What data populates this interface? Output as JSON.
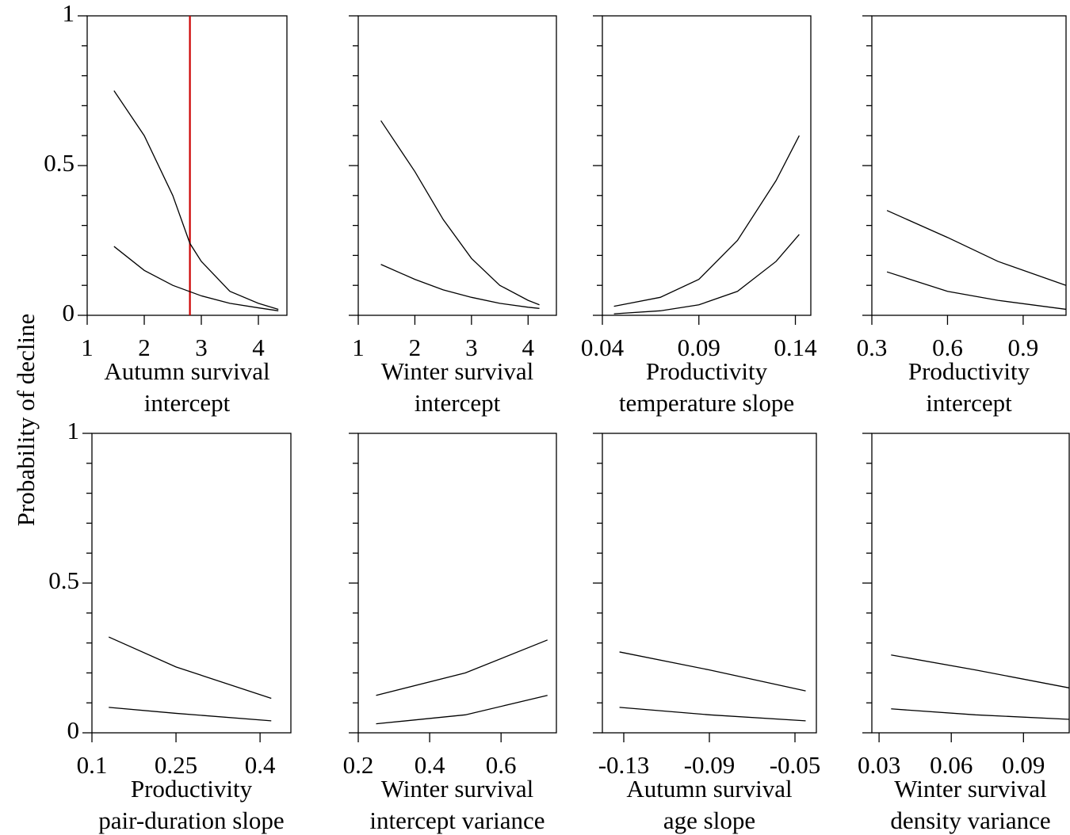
{
  "ylabel": "Probability of decline",
  "chart_data": [
    {
      "type": "line",
      "xlabel": [
        "Autumn survival",
        "intercept"
      ],
      "xlim": [
        1,
        4.5
      ],
      "xticks": [
        1,
        2,
        3,
        4
      ],
      "ylim": [
        0,
        1
      ],
      "yticks": [
        0,
        0.5,
        1
      ],
      "yminorticks": [
        0.1,
        0.2,
        0.3,
        0.4,
        0.6,
        0.7,
        0.8,
        0.9
      ],
      "ytick_labels": true,
      "vline": {
        "value": 2.8,
        "color": "#cc0000"
      },
      "series": [
        {
          "color": "#000000",
          "x": [
            1.47,
            2.0,
            2.5,
            2.8,
            3.0,
            3.5,
            4.0,
            4.35
          ],
          "values": [
            0.75,
            0.6,
            0.4,
            0.24,
            0.18,
            0.08,
            0.04,
            0.02
          ]
        },
        {
          "color": "#000000",
          "x": [
            1.47,
            2.0,
            2.5,
            3.0,
            3.5,
            4.0,
            4.35
          ],
          "values": [
            0.23,
            0.15,
            0.1,
            0.065,
            0.04,
            0.025,
            0.015
          ]
        }
      ]
    },
    {
      "type": "line",
      "xlabel": [
        "Winter survival",
        "intercept"
      ],
      "xlim": [
        1,
        4.5
      ],
      "xticks": [
        1,
        2,
        3,
        4
      ],
      "ylim": [
        0,
        1
      ],
      "yticks": [
        0,
        0.5,
        1
      ],
      "yminorticks": [
        0.1,
        0.2,
        0.3,
        0.4,
        0.6,
        0.7,
        0.8,
        0.9
      ],
      "ytick_labels": false,
      "series": [
        {
          "color": "#000000",
          "x": [
            1.4,
            2.0,
            2.5,
            3.0,
            3.5,
            4.0,
            4.2
          ],
          "values": [
            0.65,
            0.48,
            0.32,
            0.19,
            0.1,
            0.05,
            0.035
          ]
        },
        {
          "color": "#000000",
          "x": [
            1.4,
            2.0,
            2.5,
            3.0,
            3.5,
            4.0,
            4.2
          ],
          "values": [
            0.17,
            0.12,
            0.085,
            0.06,
            0.04,
            0.027,
            0.023
          ]
        }
      ]
    },
    {
      "type": "line",
      "xlabel": [
        "Productivity",
        "temperature slope"
      ],
      "xlim": [
        0.04,
        0.148
      ],
      "xticks": [
        0.04,
        0.09,
        0.14
      ],
      "ylim": [
        0,
        1
      ],
      "yticks": [
        0,
        0.5,
        1
      ],
      "yminorticks": [
        0.1,
        0.2,
        0.3,
        0.4,
        0.6,
        0.7,
        0.8,
        0.9
      ],
      "ytick_labels": false,
      "series": [
        {
          "color": "#000000",
          "x": [
            0.046,
            0.07,
            0.09,
            0.11,
            0.13,
            0.142
          ],
          "values": [
            0.03,
            0.06,
            0.12,
            0.25,
            0.45,
            0.6
          ]
        },
        {
          "color": "#000000",
          "x": [
            0.046,
            0.07,
            0.09,
            0.11,
            0.13,
            0.142
          ],
          "values": [
            0.005,
            0.015,
            0.035,
            0.08,
            0.18,
            0.27
          ]
        }
      ]
    },
    {
      "type": "line",
      "xlabel": [
        "Productivity",
        "intercept"
      ],
      "xlim": [
        0.3,
        1.07
      ],
      "xticks": [
        0.3,
        0.6,
        0.9
      ],
      "ylim": [
        0,
        1
      ],
      "yticks": [
        0,
        0.5,
        1
      ],
      "yminorticks": [
        0.1,
        0.2,
        0.3,
        0.4,
        0.6,
        0.7,
        0.8,
        0.9
      ],
      "ytick_labels": false,
      "series": [
        {
          "color": "#000000",
          "x": [
            0.36,
            0.6,
            0.8,
            1.07
          ],
          "values": [
            0.35,
            0.26,
            0.18,
            0.1
          ]
        },
        {
          "color": "#000000",
          "x": [
            0.36,
            0.6,
            0.8,
            1.07
          ],
          "values": [
            0.145,
            0.08,
            0.05,
            0.02
          ]
        }
      ]
    },
    {
      "type": "line",
      "xlabel": [
        "Productivity",
        "pair-duration slope"
      ],
      "xlim": [
        0.1,
        0.455
      ],
      "xticks": [
        0.1,
        0.25,
        0.4
      ],
      "ylim": [
        0,
        1
      ],
      "yticks": [
        0,
        0.5,
        1
      ],
      "yminorticks": [
        0.1,
        0.2,
        0.3,
        0.4,
        0.6,
        0.7,
        0.8,
        0.9
      ],
      "ytick_labels": true,
      "series": [
        {
          "color": "#000000",
          "x": [
            0.13,
            0.25,
            0.42
          ],
          "values": [
            0.32,
            0.22,
            0.115
          ]
        },
        {
          "color": "#000000",
          "x": [
            0.13,
            0.25,
            0.42
          ],
          "values": [
            0.085,
            0.065,
            0.04
          ]
        }
      ]
    },
    {
      "type": "line",
      "xlabel": [
        "Winter survival",
        "intercept variance"
      ],
      "xlim": [
        0.2,
        0.755
      ],
      "xticks": [
        0.2,
        0.4,
        0.6
      ],
      "ylim": [
        0,
        1
      ],
      "yticks": [
        0,
        0.5,
        1
      ],
      "yminorticks": [
        0.1,
        0.2,
        0.3,
        0.4,
        0.6,
        0.7,
        0.8,
        0.9
      ],
      "ytick_labels": false,
      "series": [
        {
          "color": "#000000",
          "x": [
            0.25,
            0.5,
            0.73
          ],
          "values": [
            0.125,
            0.2,
            0.31
          ]
        },
        {
          "color": "#000000",
          "x": [
            0.25,
            0.5,
            0.73
          ],
          "values": [
            0.03,
            0.06,
            0.125
          ]
        }
      ]
    },
    {
      "type": "line",
      "xlabel": [
        "Autumn survival",
        "age slope"
      ],
      "xlim": [
        -0.14,
        -0.04
      ],
      "xticks": [
        -0.13,
        -0.09,
        -0.05
      ],
      "ylim": [
        0,
        1
      ],
      "yticks": [
        0,
        0.5,
        1
      ],
      "yminorticks": [
        0.1,
        0.2,
        0.3,
        0.4,
        0.6,
        0.7,
        0.8,
        0.9
      ],
      "ytick_labels": false,
      "series": [
        {
          "color": "#000000",
          "x": [
            -0.132,
            -0.09,
            -0.045
          ],
          "values": [
            0.27,
            0.21,
            0.14
          ]
        },
        {
          "color": "#000000",
          "x": [
            -0.132,
            -0.09,
            -0.045
          ],
          "values": [
            0.085,
            0.06,
            0.04
          ]
        }
      ]
    },
    {
      "type": "line",
      "xlabel": [
        "Winter survival",
        "density variance"
      ],
      "xlim": [
        0.027,
        0.109
      ],
      "xticks": [
        0.03,
        0.06,
        0.09
      ],
      "ylim": [
        0,
        1
      ],
      "yticks": [
        0,
        0.5,
        1
      ],
      "yminorticks": [
        0.1,
        0.2,
        0.3,
        0.4,
        0.6,
        0.7,
        0.8,
        0.9
      ],
      "ytick_labels": false,
      "series": [
        {
          "color": "#000000",
          "x": [
            0.035,
            0.07,
            0.109
          ],
          "values": [
            0.26,
            0.21,
            0.15
          ]
        },
        {
          "color": "#000000",
          "x": [
            0.035,
            0.07,
            0.109
          ],
          "values": [
            0.08,
            0.06,
            0.045
          ]
        }
      ]
    }
  ]
}
